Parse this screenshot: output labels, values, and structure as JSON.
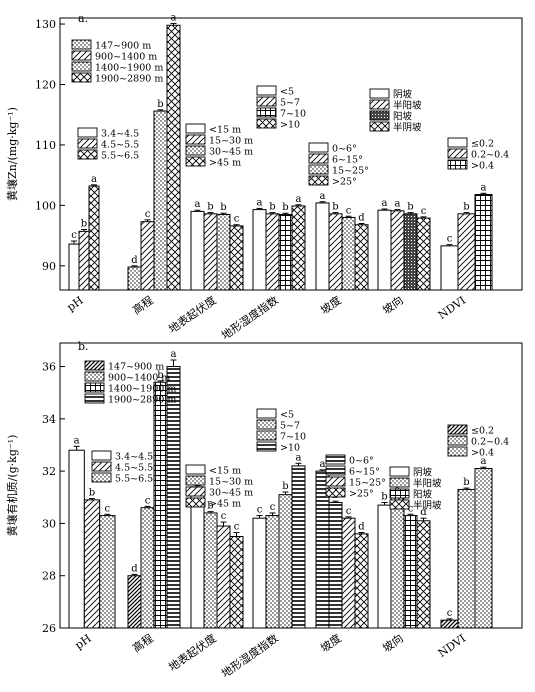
{
  "chart_data": [
    {
      "type": "bar",
      "panel_label": "a.",
      "ylabel": "黄壤Zn/(mg·kg⁻¹)",
      "ylim": [
        86,
        131
      ],
      "yticks": [
        90,
        100,
        110,
        120,
        130
      ],
      "groups": [
        {
          "name": "pH",
          "legend": [
            "3.4~4.5",
            "4.5~5.5",
            "5.5~6.5"
          ],
          "values": [
            93.6,
            95.7,
            103.2
          ],
          "errors": [
            0.5,
            0.3,
            0.2
          ],
          "letters": [
            "c",
            "b",
            "a"
          ]
        },
        {
          "name": "高程",
          "legend": [
            "147~900 m",
            "900~1400 m",
            "1400~1900 m",
            "1900~2890 m"
          ],
          "values": [
            89.8,
            97.3,
            115.6,
            129.8
          ],
          "errors": [
            0.2,
            0.3,
            0.2,
            0.3
          ],
          "letters": [
            "d",
            "c",
            "b",
            "a"
          ]
        },
        {
          "name": "地表起伏度",
          "legend": [
            "<15 m",
            "15~30 m",
            "30~45 m",
            ">45 m"
          ],
          "values": [
            99.0,
            98.6,
            98.5,
            96.6
          ],
          "errors": [
            0.2,
            0.2,
            0.2,
            0.2
          ],
          "letters": [
            "a",
            "b",
            "b",
            "c"
          ]
        },
        {
          "name": "地形湿度指数",
          "legend": [
            "<5",
            "5~7",
            "7~10",
            ">10"
          ],
          "values": [
            99.3,
            98.6,
            98.5,
            99.9
          ],
          "errors": [
            0.2,
            0.2,
            0.2,
            0.2
          ],
          "letters": [
            "a",
            "b",
            "b",
            "a"
          ]
        },
        {
          "name": "坡度",
          "legend": [
            "0~6°",
            "6~15°",
            "15~25°",
            ">25°"
          ],
          "values": [
            100.4,
            98.6,
            98.0,
            96.8
          ],
          "errors": [
            0.2,
            0.2,
            0.2,
            0.2
          ],
          "letters": [
            "a",
            "b",
            "c",
            "d"
          ]
        },
        {
          "name": "坡向",
          "legend": [
            "阴坡",
            "半阳坡",
            "阳坡",
            "半阴坡"
          ],
          "values": [
            99.2,
            99.1,
            98.6,
            97.9
          ],
          "errors": [
            0.2,
            0.2,
            0.2,
            0.2
          ],
          "letters": [
            "a",
            "a",
            "b",
            "c"
          ]
        },
        {
          "name": "NDVI",
          "legend": [
            "≤0.2",
            "0.2~0.4",
            ">0.4"
          ],
          "values": [
            93.3,
            98.6,
            101.8
          ],
          "errors": [
            0.2,
            0.2,
            0.2
          ],
          "letters": [
            "c",
            "b",
            "a"
          ]
        }
      ]
    },
    {
      "type": "bar",
      "panel_label": "b.",
      "ylabel": "黄壤有机质/(g·kg⁻¹)",
      "ylim": [
        26,
        36.9
      ],
      "yticks": [
        26,
        28,
        30,
        32,
        34,
        36
      ],
      "groups": [
        {
          "name": "pH",
          "legend": [
            "3.4~4.5",
            "4.5~5.5",
            "5.5~6.5"
          ],
          "values": [
            32.8,
            30.9,
            30.3
          ],
          "errors": [
            0.15,
            0.05,
            0.05
          ],
          "letters": [
            "a",
            "b",
            "c"
          ]
        },
        {
          "name": "高程",
          "legend": [
            "147~900 m",
            "900~1400 m",
            "1400~1900 m",
            "1900~2890 m"
          ],
          "values": [
            28.0,
            30.6,
            35.4,
            36.0
          ],
          "errors": [
            0.05,
            0.05,
            0.05,
            0.25
          ],
          "letters": [
            "d",
            "c",
            "b",
            "a"
          ]
        },
        {
          "name": "地表起伏度",
          "legend": [
            "<15 m",
            "15~30 m",
            "30~45 m",
            ">45 m"
          ],
          "values": [
            31.4,
            30.4,
            29.9,
            29.5
          ],
          "errors": [
            0.05,
            0.05,
            0.15,
            0.15
          ],
          "letters": [
            "a",
            "b",
            "c",
            "c"
          ]
        },
        {
          "name": "地形湿度指数",
          "legend": [
            "<5",
            "5~7",
            "7~10",
            ">10"
          ],
          "values": [
            30.2,
            30.3,
            31.1,
            32.2
          ],
          "errors": [
            0.1,
            0.1,
            0.1,
            0.1
          ],
          "letters": [
            "c",
            "c",
            "b",
            "a"
          ]
        },
        {
          "name": "坡度",
          "legend": [
            "0~6°",
            "6~15°",
            "15~25°",
            ">25°"
          ],
          "values": [
            32.0,
            30.8,
            30.2,
            29.6
          ],
          "errors": [
            0.05,
            0.05,
            0.05,
            0.05
          ],
          "letters": [
            "a",
            "b",
            "c",
            "d"
          ]
        },
        {
          "name": "坡向",
          "legend": [
            "阴坡",
            "半阳坡",
            "阳坡",
            "半阴坡"
          ],
          "values": [
            30.7,
            31.0,
            30.3,
            30.1
          ],
          "errors": [
            0.1,
            0.05,
            0.05,
            0.1
          ],
          "letters": [
            "b",
            "a",
            "c",
            "d"
          ]
        },
        {
          "name": "NDVI",
          "legend": [
            "≤0.2",
            "0.2~0.4",
            ">0.4"
          ],
          "values": [
            26.3,
            31.3,
            32.1
          ],
          "errors": [
            0.05,
            0.05,
            0.05
          ],
          "letters": [
            "c",
            "b",
            "a"
          ]
        }
      ]
    }
  ]
}
